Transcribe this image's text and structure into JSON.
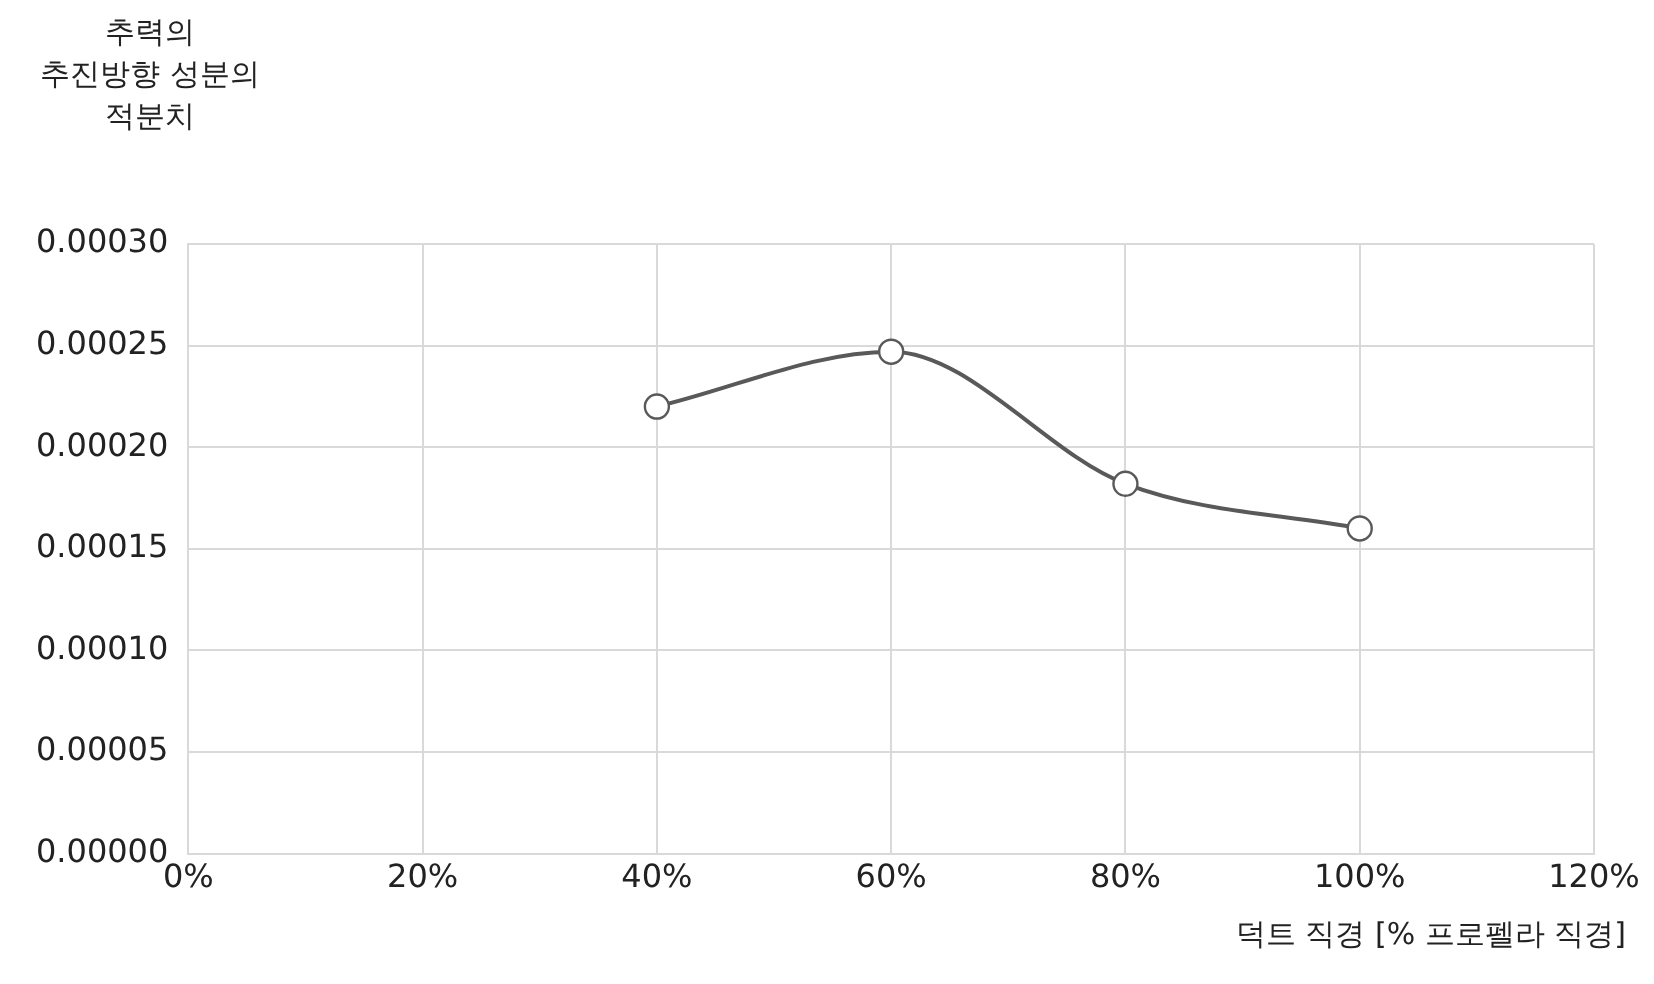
{
  "chart_data": {
    "type": "line",
    "ylabel": "추력의\n추진방향 성분의\n적분치",
    "xlabel": "덕트 직경 [% 프로펠라 직경]",
    "x": [
      40,
      60,
      80,
      100
    ],
    "series": [
      {
        "color": "#595959",
        "values": [
          0.00022,
          0.000247,
          0.000182,
          0.00016
        ]
      }
    ],
    "xlim": [
      0,
      120
    ],
    "xticks": [
      {
        "value": 0,
        "label": "0%"
      },
      {
        "value": 20,
        "label": "20%"
      },
      {
        "value": 40,
        "label": "40%"
      },
      {
        "value": 60,
        "label": "60%"
      },
      {
        "value": 80,
        "label": "80%"
      },
      {
        "value": 100,
        "label": "100%"
      },
      {
        "value": 120,
        "label": "120%"
      }
    ],
    "ylim": [
      0,
      0.0003
    ],
    "yticks": [
      {
        "value": 0,
        "label": "0.00000"
      },
      {
        "value": 5e-05,
        "label": "0.00005"
      },
      {
        "value": 0.0001,
        "label": "0.00010"
      },
      {
        "value": 0.00015,
        "label": "0.00015"
      },
      {
        "value": 0.0002,
        "label": "0.00020"
      },
      {
        "value": 0.00025,
        "label": "0.00025"
      },
      {
        "value": 0.0003,
        "label": "0.00030"
      }
    ],
    "grid": true,
    "marker": "circle",
    "legend": false
  }
}
